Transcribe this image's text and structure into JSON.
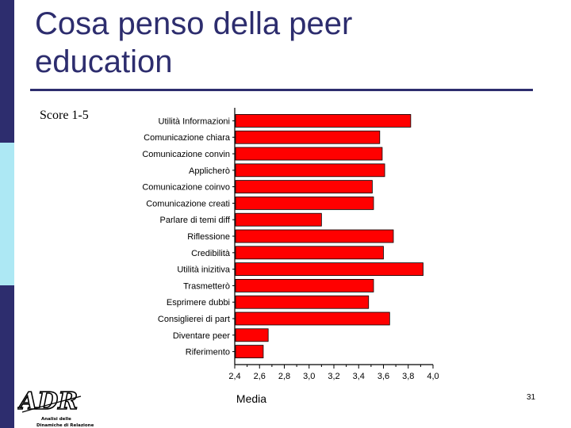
{
  "slide": {
    "title": "Cosa penso della peer\neducation",
    "score_label": "Score 1-5",
    "page_number": "31",
    "colors": {
      "title": "#2d2d6e",
      "sidebar_top": "#2d2d6e",
      "sidebar_mid": "#ade8f4",
      "sidebar_bot": "#2d2d6e",
      "bar": "#ff0000"
    }
  },
  "logo": {
    "text": "ADR",
    "caption_line1": "Analisi delle",
    "caption_line2": "Dinamiche di Relazione"
  },
  "chart_data": {
    "type": "bar",
    "orientation": "horizontal",
    "categories": [
      "Utilità Informazioni",
      "Comunicazione chiara",
      "Comunicazione convin",
      "Applicherò",
      "Comunicazione coinvo",
      "Comunicazione creati",
      "Parlare di temi diff",
      "Riflessione",
      "Credibilità",
      "Utilità inizitiva",
      "Trasmetterò",
      "Esprimere dubbi",
      "Consiglierei di part",
      "Diventare peer",
      "Riferimento"
    ],
    "values": [
      3.82,
      3.57,
      3.59,
      3.61,
      3.51,
      3.52,
      3.1,
      3.68,
      3.6,
      3.92,
      3.52,
      3.48,
      3.65,
      2.67,
      2.63
    ],
    "xlabel": "Media",
    "ylabel": "",
    "xlim": [
      2.4,
      4.0
    ],
    "ticks": [
      "2,4",
      "2,6",
      "2,8",
      "3,0",
      "3,2",
      "3,4",
      "3,6",
      "3,8",
      "4,0"
    ],
    "grid": false
  }
}
